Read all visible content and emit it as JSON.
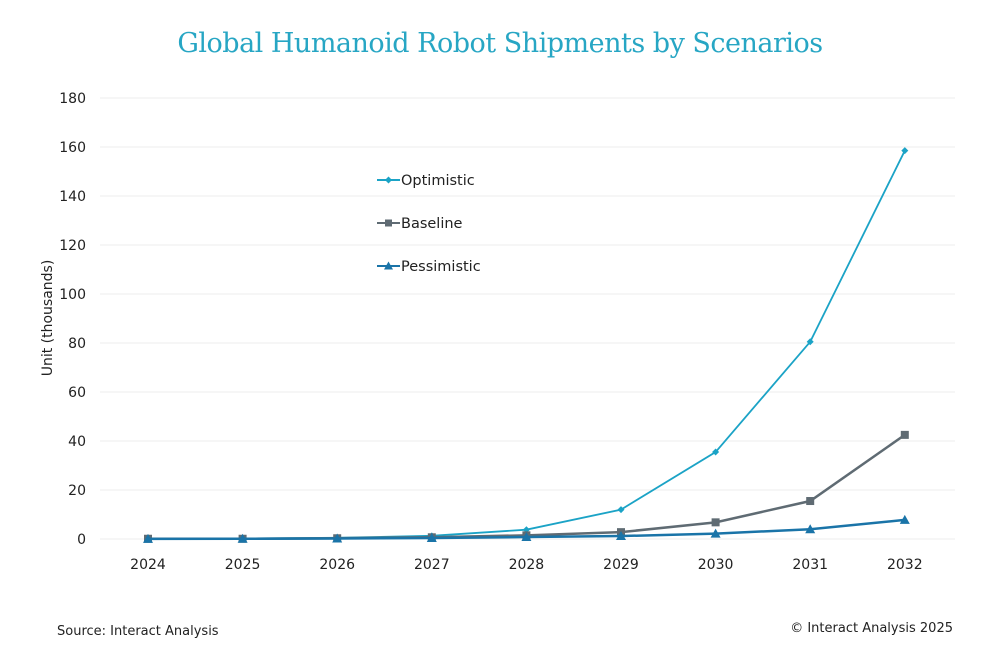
{
  "chart_data": {
    "type": "line",
    "title": "Global Humanoid Robot Shipments by Scenarios",
    "xlabel": "",
    "ylabel": "Unit (thousands)",
    "x": [
      "2024",
      "2025",
      "2026",
      "2027",
      "2028",
      "2029",
      "2030",
      "2031",
      "2032"
    ],
    "ylim": [
      0,
      180
    ],
    "yticks": [
      0,
      20,
      40,
      60,
      80,
      100,
      120,
      140,
      160,
      180
    ],
    "grid": true,
    "legend_position": "upper-center-left",
    "series": [
      {
        "name": "Optimistic",
        "color": "#1ba3c6",
        "marker": "diamond",
        "values": [
          0.1,
          0.2,
          0.5,
          1.3,
          3.8,
          12,
          35.5,
          80.5,
          158.5
        ]
      },
      {
        "name": "Baseline",
        "color": "#5f6b73",
        "marker": "square",
        "values": [
          0.1,
          0.1,
          0.3,
          0.7,
          1.5,
          2.8,
          6.8,
          15.5,
          42.5
        ]
      },
      {
        "name": "Pessimistic",
        "color": "#1a74a8",
        "marker": "triangle",
        "values": [
          0.05,
          0.1,
          0.2,
          0.4,
          0.8,
          1.2,
          2.2,
          4,
          7.8
        ]
      }
    ]
  },
  "footer": {
    "source": "Source: Interact Analysis",
    "copyright": "© Interact Analysis 2025"
  }
}
